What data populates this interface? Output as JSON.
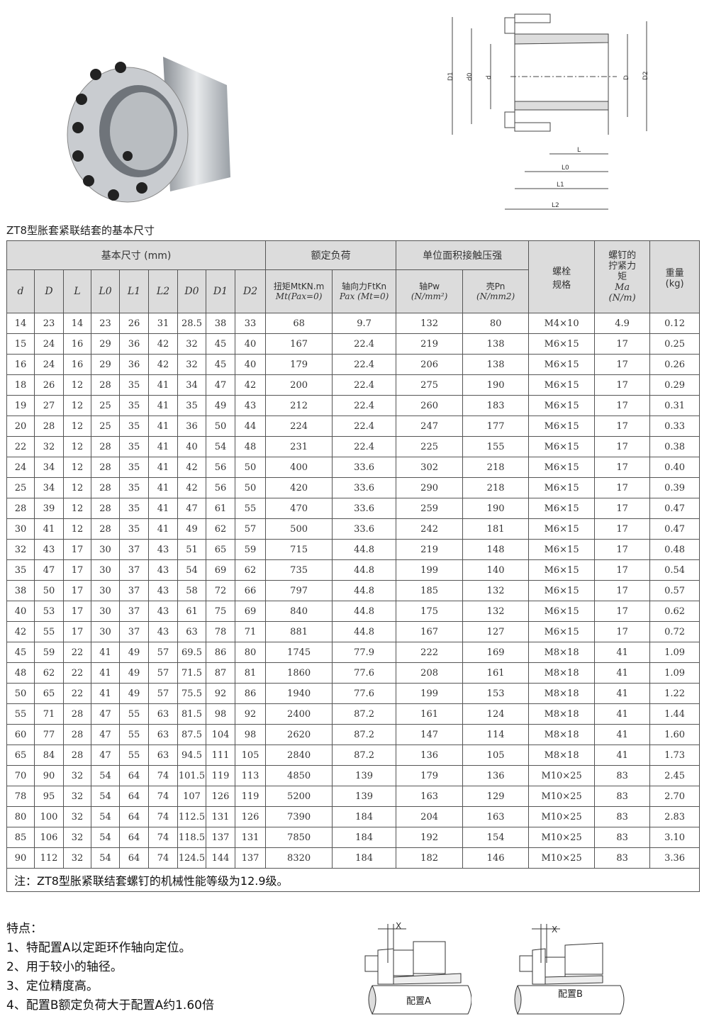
{
  "title": "ZT8型胀套紧联结套的基本尺寸",
  "header": {
    "basic": "基本尺寸 (mm)",
    "load": "额定负荷",
    "pressure": "单位面积接触压强",
    "bolt": "螺栓规格",
    "torque_screw": "螺钉的拧紧力矩",
    "ma": "Ma",
    "ma_unit": "(N/m)",
    "weight": "重量",
    "weight_unit": "(kg)",
    "cols": [
      "d",
      "D",
      "L",
      "L0",
      "L1",
      "L2",
      "D0",
      "D1",
      "D2"
    ],
    "mt": "扭矩MtKN.m",
    "mt2": "Mt(Pax=0)",
    "ft": "轴向力FtKn",
    "ft2": "Pax (Mt=0)",
    "pw": "轴Pw",
    "pw2": "(N/mm²)",
    "pn": "壳Pn",
    "pn2": "(N/mm2)"
  },
  "rows": [
    [
      "14",
      "23",
      "14",
      "23",
      "26",
      "31",
      "28.5",
      "38",
      "33",
      "68",
      "9.7",
      "132",
      "80",
      "M4×10",
      "4.9",
      "0.12"
    ],
    [
      "15",
      "24",
      "16",
      "29",
      "36",
      "42",
      "32",
      "45",
      "40",
      "167",
      "22.4",
      "219",
      "138",
      "M6×15",
      "17",
      "0.25"
    ],
    [
      "16",
      "24",
      "16",
      "29",
      "36",
      "42",
      "32",
      "45",
      "40",
      "179",
      "22.4",
      "206",
      "138",
      "M6×15",
      "17",
      "0.26"
    ],
    [
      "18",
      "26",
      "12",
      "28",
      "35",
      "41",
      "34",
      "47",
      "42",
      "200",
      "22.4",
      "275",
      "190",
      "M6×15",
      "17",
      "0.29"
    ],
    [
      "19",
      "27",
      "12",
      "25",
      "35",
      "41",
      "35",
      "49",
      "43",
      "212",
      "22.4",
      "260",
      "183",
      "M6×15",
      "17",
      "0.31"
    ],
    [
      "20",
      "28",
      "12",
      "25",
      "35",
      "41",
      "36",
      "50",
      "44",
      "224",
      "22.4",
      "247",
      "177",
      "M6×15",
      "17",
      "0.33"
    ],
    [
      "22",
      "32",
      "12",
      "28",
      "35",
      "41",
      "40",
      "54",
      "48",
      "231",
      "22.4",
      "225",
      "155",
      "M6×15",
      "17",
      "0.38"
    ],
    [
      "24",
      "34",
      "12",
      "28",
      "35",
      "41",
      "42",
      "56",
      "50",
      "400",
      "33.6",
      "302",
      "218",
      "M6×15",
      "17",
      "0.40"
    ],
    [
      "25",
      "34",
      "12",
      "28",
      "35",
      "41",
      "42",
      "56",
      "50",
      "420",
      "33.6",
      "290",
      "218",
      "M6×15",
      "17",
      "0.39"
    ],
    [
      "28",
      "39",
      "12",
      "28",
      "35",
      "41",
      "47",
      "61",
      "55",
      "470",
      "33.6",
      "259",
      "190",
      "M6×15",
      "17",
      "0.47"
    ],
    [
      "30",
      "41",
      "12",
      "28",
      "35",
      "41",
      "49",
      "62",
      "57",
      "500",
      "33.6",
      "242",
      "181",
      "M6×15",
      "17",
      "0.47"
    ],
    [
      "32",
      "43",
      "17",
      "30",
      "37",
      "43",
      "51",
      "65",
      "59",
      "715",
      "44.8",
      "219",
      "148",
      "M6×15",
      "17",
      "0.48"
    ],
    [
      "35",
      "47",
      "17",
      "30",
      "37",
      "43",
      "54",
      "69",
      "62",
      "735",
      "44.8",
      "199",
      "140",
      "M6×15",
      "17",
      "0.54"
    ],
    [
      "38",
      "50",
      "17",
      "30",
      "37",
      "43",
      "58",
      "72",
      "66",
      "797",
      "44.8",
      "185",
      "132",
      "M6×15",
      "17",
      "0.57"
    ],
    [
      "40",
      "53",
      "17",
      "30",
      "37",
      "43",
      "61",
      "75",
      "69",
      "840",
      "44.8",
      "175",
      "132",
      "M6×15",
      "17",
      "0.62"
    ],
    [
      "42",
      "55",
      "17",
      "30",
      "37",
      "43",
      "63",
      "78",
      "71",
      "881",
      "44.8",
      "167",
      "127",
      "M6×15",
      "17",
      "0.72"
    ],
    [
      "45",
      "59",
      "22",
      "41",
      "49",
      "57",
      "69.5",
      "86",
      "80",
      "1745",
      "77.9",
      "222",
      "169",
      "M8×18",
      "41",
      "1.09"
    ],
    [
      "48",
      "62",
      "22",
      "41",
      "49",
      "57",
      "71.5",
      "87",
      "81",
      "1860",
      "77.6",
      "208",
      "161",
      "M8×18",
      "41",
      "1.09"
    ],
    [
      "50",
      "65",
      "22",
      "41",
      "49",
      "57",
      "75.5",
      "92",
      "86",
      "1940",
      "77.6",
      "199",
      "153",
      "M8×18",
      "41",
      "1.22"
    ],
    [
      "55",
      "71",
      "28",
      "47",
      "55",
      "63",
      "81.5",
      "98",
      "92",
      "2400",
      "87.2",
      "161",
      "124",
      "M8×18",
      "41",
      "1.44"
    ],
    [
      "60",
      "77",
      "28",
      "47",
      "55",
      "63",
      "87.5",
      "104",
      "98",
      "2620",
      "87.2",
      "147",
      "114",
      "M8×18",
      "41",
      "1.60"
    ],
    [
      "65",
      "84",
      "28",
      "47",
      "55",
      "63",
      "94.5",
      "111",
      "105",
      "2840",
      "87.2",
      "136",
      "105",
      "M8×18",
      "41",
      "1.73"
    ],
    [
      "70",
      "90",
      "32",
      "54",
      "64",
      "74",
      "101.5",
      "119",
      "113",
      "4850",
      "139",
      "179",
      "136",
      "M10×25",
      "83",
      "2.45"
    ],
    [
      "78",
      "95",
      "32",
      "54",
      "64",
      "74",
      "107",
      "126",
      "119",
      "5200",
      "139",
      "163",
      "129",
      "M10×25",
      "83",
      "2.70"
    ],
    [
      "80",
      "100",
      "32",
      "54",
      "64",
      "74",
      "112.5",
      "131",
      "126",
      "7390",
      "184",
      "204",
      "163",
      "M10×25",
      "83",
      "2.83"
    ],
    [
      "85",
      "106",
      "32",
      "54",
      "64",
      "74",
      "118.5",
      "137",
      "131",
      "7850",
      "184",
      "192",
      "154",
      "M10×25",
      "83",
      "3.10"
    ],
    [
      "90",
      "112",
      "32",
      "54",
      "64",
      "74",
      "124.5",
      "144",
      "137",
      "8320",
      "184",
      "182",
      "146",
      "M10×25",
      "83",
      "3.36"
    ]
  ],
  "note": "注：ZT8型胀紧联结套螺钉的机械性能等级为12.9级。",
  "features": {
    "heading": "特点：",
    "items": [
      "1、特配置A以定距环作轴向定位。",
      "2、用于较小的轴径。",
      "3、定位精度高。",
      "4、配置B额定负荷大于配置A约1.60倍"
    ]
  },
  "drawing": {
    "labels": [
      "D1",
      "d0",
      "d",
      "D",
      "D2",
      "L",
      "L0",
      "L1",
      "L2"
    ]
  },
  "config": {
    "a": "配置A",
    "b": "配置B",
    "x": "X"
  }
}
